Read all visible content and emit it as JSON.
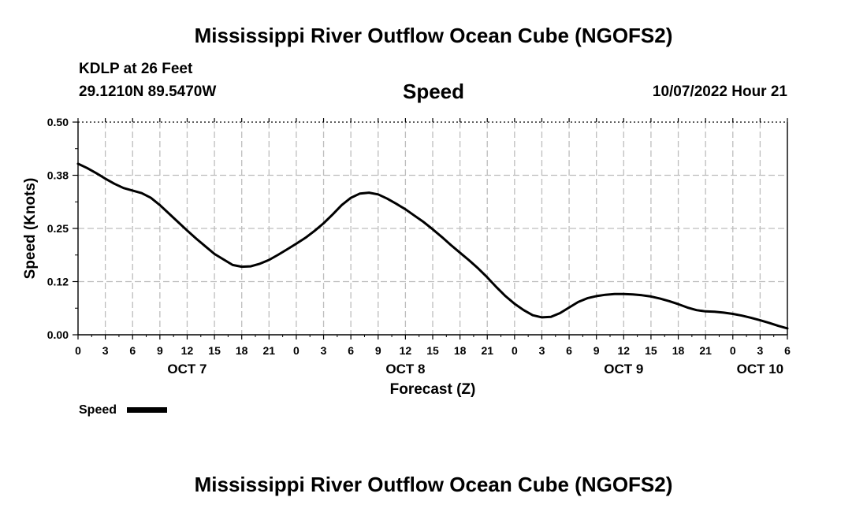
{
  "header": {
    "title": "Mississippi River Outflow Ocean Cube (NGOFS2)",
    "station": "KDLP at 26 Feet",
    "coordinates": "29.1210N  89.5470W",
    "panel_title": "Speed",
    "timestamp": "10/07/2022 Hour 21"
  },
  "footer": {
    "title": "Mississippi River Outflow Ocean Cube (NGOFS2)"
  },
  "chart_data": {
    "type": "line",
    "title": "Speed",
    "xlabel": "Forecast (Z)",
    "ylabel": "Speed (Knots)",
    "xlim": [
      0,
      78
    ],
    "ylim": [
      0,
      0.5
    ],
    "yticks": [
      0,
      0.125,
      0.25,
      0.375,
      0.5
    ],
    "ytick_labels": [
      "0.00",
      "0.12",
      "0.25",
      "0.38",
      "0.50"
    ],
    "xticks": [
      0,
      3,
      6,
      9,
      12,
      15,
      18,
      21,
      24,
      27,
      30,
      33,
      36,
      39,
      42,
      45,
      48,
      51,
      54,
      57,
      60,
      63,
      66,
      69,
      72,
      75,
      78
    ],
    "xtick_labels": [
      "0",
      "3",
      "6",
      "9",
      "12",
      "15",
      "18",
      "21",
      "0",
      "3",
      "6",
      "9",
      "12",
      "15",
      "18",
      "21",
      "0",
      "3",
      "6",
      "9",
      "12",
      "15",
      "18",
      "21",
      "0",
      "3",
      "6"
    ],
    "day_labels": [
      {
        "x": 12,
        "label": "OCT 7"
      },
      {
        "x": 36,
        "label": "OCT 8"
      },
      {
        "x": 60,
        "label": "OCT 9"
      },
      {
        "x": 75,
        "label": "OCT 10"
      }
    ],
    "grid": true,
    "legend": "bottom-left",
    "series": [
      {
        "name": "Speed",
        "x": [
          0,
          1,
          2,
          3,
          4,
          5,
          6,
          7,
          8,
          9,
          10,
          11,
          12,
          13,
          14,
          15,
          16,
          17,
          18,
          19,
          20,
          21,
          22,
          23,
          24,
          25,
          26,
          27,
          28,
          29,
          30,
          31,
          32,
          33,
          34,
          35,
          36,
          37,
          38,
          39,
          40,
          41,
          42,
          43,
          44,
          45,
          46,
          47,
          48,
          49,
          50,
          51,
          52,
          53,
          54,
          55,
          56,
          57,
          58,
          59,
          60,
          61,
          62,
          63,
          64,
          65,
          66,
          67,
          68,
          69,
          70,
          71,
          72,
          73,
          74,
          75,
          76,
          77,
          78
        ],
        "values": [
          0.402,
          0.392,
          0.38,
          0.367,
          0.355,
          0.345,
          0.339,
          0.333,
          0.322,
          0.305,
          0.285,
          0.265,
          0.245,
          0.226,
          0.208,
          0.19,
          0.177,
          0.164,
          0.16,
          0.161,
          0.167,
          0.176,
          0.188,
          0.201,
          0.214,
          0.228,
          0.244,
          0.262,
          0.283,
          0.305,
          0.322,
          0.332,
          0.334,
          0.33,
          0.32,
          0.308,
          0.295,
          0.28,
          0.265,
          0.248,
          0.23,
          0.211,
          0.193,
          0.175,
          0.156,
          0.135,
          0.112,
          0.091,
          0.073,
          0.058,
          0.046,
          0.041,
          0.042,
          0.051,
          0.064,
          0.077,
          0.086,
          0.091,
          0.094,
          0.096,
          0.096,
          0.095,
          0.093,
          0.09,
          0.085,
          0.079,
          0.072,
          0.064,
          0.058,
          0.055,
          0.054,
          0.052,
          0.049,
          0.045,
          0.04,
          0.034,
          0.028,
          0.021,
          0.015
        ],
        "color": "#000000"
      }
    ]
  }
}
